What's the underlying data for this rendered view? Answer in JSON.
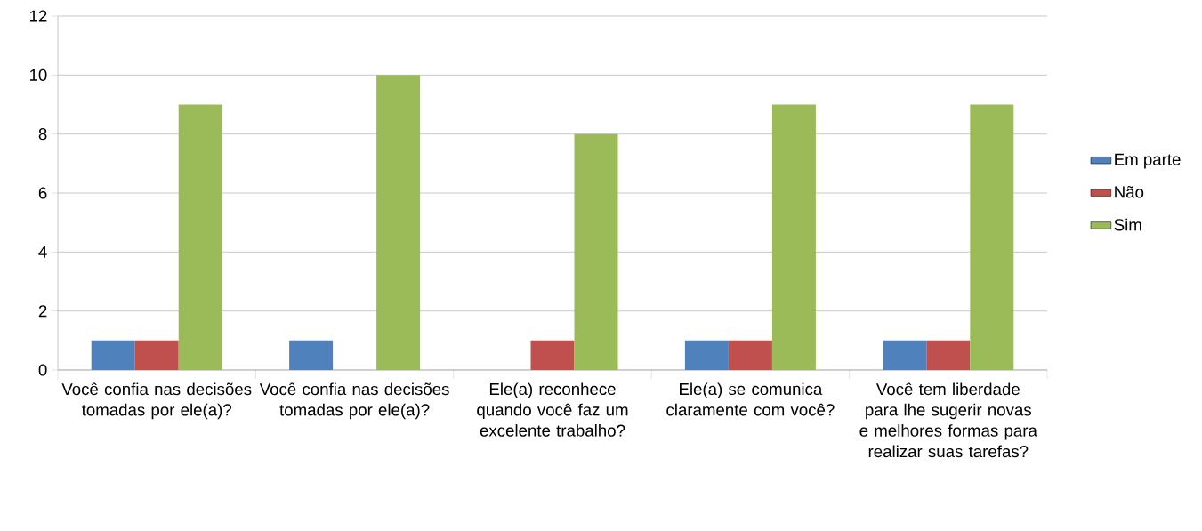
{
  "chart_data": {
    "type": "bar",
    "categories": [
      "Você confia nas decisões tomadas por ele(a)?",
      "Você confia nas decisões tomadas por ele(a)?",
      "Ele(a) reconhece quando você faz um excelente trabalho?",
      "Ele(a) se comunica claramente com você?",
      "Você tem liberdade para lhe sugerir novas e melhores formas para realizar suas tarefas?"
    ],
    "series": [
      {
        "name": "Em parte",
        "color": "#4f81bd",
        "values": [
          1,
          1,
          null,
          1,
          1
        ]
      },
      {
        "name": "Não",
        "color": "#c0504d",
        "values": [
          1,
          null,
          1,
          1,
          1
        ]
      },
      {
        "name": "Sim",
        "color": "#9bbb59",
        "values": [
          9,
          10,
          8,
          9,
          9
        ]
      }
    ],
    "ylim": [
      0,
      12
    ],
    "yticks": [
      0,
      2,
      4,
      6,
      8,
      10,
      12
    ],
    "grid": "y",
    "legend": "right"
  }
}
